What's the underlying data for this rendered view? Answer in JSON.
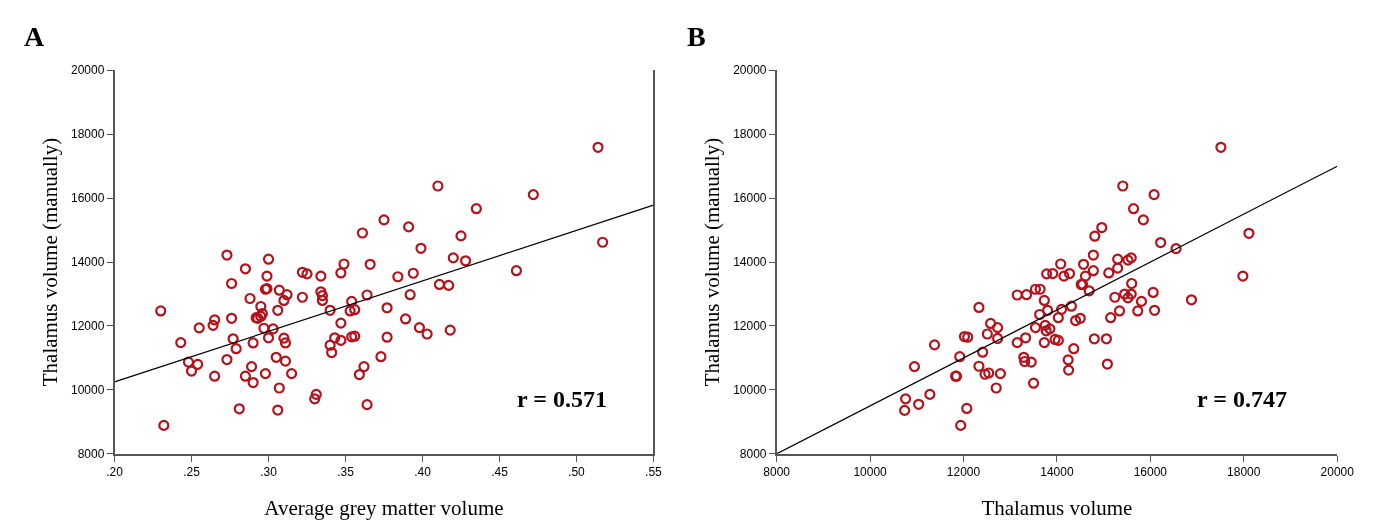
{
  "chart_data": [
    {
      "type": "scatter",
      "title": "A",
      "xlabel": "Average grey matter volume",
      "ylabel": "Thalamus volume (manually)",
      "xlim": [
        0.2,
        0.55
      ],
      "xticks": [
        {
          "value": 0.2,
          "label": ".20"
        },
        {
          "value": 0.25,
          "label": ".25"
        },
        {
          "value": 0.3,
          "label": ".30"
        },
        {
          "value": 0.35,
          "label": ".35"
        },
        {
          "value": 0.4,
          "label": ".40"
        },
        {
          "value": 0.45,
          "label": ".45"
        },
        {
          "value": 0.5,
          "label": ".50"
        },
        {
          "value": 0.55,
          "label": ".55"
        }
      ],
      "ylim": [
        8000,
        20000
      ],
      "yticks": [
        8000,
        10000,
        12000,
        14000,
        16000,
        18000,
        20000
      ],
      "annotations": [
        "r = 0.571"
      ],
      "series": [
        {
          "marker": "circle",
          "color": "#b5121b",
          "x": [
            0.23,
            0.232,
            0.243,
            0.248,
            0.25,
            0.254,
            0.255,
            0.264,
            0.265,
            0.265,
            0.273,
            0.273,
            0.276,
            0.276,
            0.277,
            0.279,
            0.281,
            0.285,
            0.285,
            0.288,
            0.289,
            0.29,
            0.29,
            0.292,
            0.293,
            0.295,
            0.296,
            0.295,
            0.297,
            0.298,
            0.299,
            0.298,
            0.299,
            0.3,
            0.3,
            0.303,
            0.305,
            0.306,
            0.306,
            0.307,
            0.307,
            0.31,
            0.312,
            0.31,
            0.311,
            0.311,
            0.315,
            0.322,
            0.322,
            0.325,
            0.33,
            0.331,
            0.334,
            0.334,
            0.335,
            0.335,
            0.34,
            0.34,
            0.341,
            0.343,
            0.347,
            0.347,
            0.347,
            0.349,
            0.353,
            0.356,
            0.354,
            0.354,
            0.356,
            0.359,
            0.361,
            0.362,
            0.364,
            0.364,
            0.366,
            0.373,
            0.375,
            0.377,
            0.377,
            0.384,
            0.391,
            0.399,
            0.394,
            0.392,
            0.389,
            0.398,
            0.403,
            0.41,
            0.411,
            0.417,
            0.418,
            0.42,
            0.428,
            0.425,
            0.435,
            0.461,
            0.472,
            0.514,
            0.517
          ],
          "values": [
            12470,
            8890,
            11480,
            10870,
            10590,
            10800,
            11940,
            12020,
            12190,
            10430,
            14220,
            10950,
            12240,
            13330,
            11600,
            11290,
            9410,
            10430,
            13790,
            12860,
            10730,
            11470,
            10230,
            12260,
            12240,
            12300,
            12390,
            12610,
            11930,
            13150,
            13170,
            10510,
            13560,
            14090,
            11630,
            11910,
            11020,
            9370,
            12490,
            10060,
            13120,
            12800,
            12980,
            11620,
            11470,
            10900,
            10510,
            12900,
            13680,
            13630,
            9720,
            9860,
            13560,
            13070,
            12950,
            12800,
            12490,
            11400,
            11170,
            11630,
            11550,
            13660,
            12090,
            13940,
            12470,
            12510,
            12770,
            11660,
            11680,
            10480,
            14910,
            10730,
            9540,
            12970,
            13930,
            11040,
            15320,
            12570,
            11650,
            13540,
            15100,
            14430,
            13650,
            12980,
            12220,
            11950,
            11750,
            16380,
            13300,
            13270,
            11870,
            14130,
            14040,
            14820,
            15670,
            13730,
            16110,
            17590,
            14620
          ]
        },
        {
          "type": "line",
          "color": "#000000",
          "x": [
            0.2,
            0.55
          ],
          "values": [
            10250,
            15780
          ]
        }
      ]
    },
    {
      "type": "scatter",
      "title": "B",
      "xlabel": "Thalamus volume",
      "ylabel": "Thalamus volume (manually)",
      "xlim": [
        8000,
        20000
      ],
      "xticks": [
        8000,
        10000,
        12000,
        14000,
        16000,
        18000,
        20000
      ],
      "ylim": [
        8000,
        20000
      ],
      "yticks": [
        8000,
        10000,
        12000,
        14000,
        16000,
        18000,
        20000
      ],
      "annotations": [
        "r = 0.747"
      ],
      "series": [
        {
          "marker": "circle",
          "color": "#b5121b",
          "x": [
            10740,
            10760,
            10950,
            11040,
            11280,
            11380,
            11830,
            11850,
            11920,
            11940,
            12070,
            12020,
            12090,
            12330,
            12330,
            12410,
            12460,
            12540,
            12510,
            12580,
            12700,
            12730,
            12730,
            12790,
            13150,
            13350,
            13150,
            13330,
            13290,
            13310,
            13450,
            13500,
            13540,
            13640,
            13780,
            13730,
            13630,
            13540,
            13730,
            13750,
            13770,
            13800,
            13850,
            13910,
            13960,
            14030,
            14080,
            14030,
            14100,
            14150,
            14270,
            14310,
            14360,
            14240,
            14250,
            14400,
            14500,
            14520,
            14550,
            14570,
            14610,
            14690,
            14780,
            14780,
            14810,
            14960,
            14800,
            15060,
            15080,
            15110,
            15150,
            15240,
            15300,
            15300,
            15340,
            15410,
            15450,
            15520,
            15590,
            15520,
            15590,
            15600,
            15640,
            15730,
            15810,
            15850,
            16080,
            16060,
            16090,
            16220,
            16550,
            16880,
            17510,
            17980,
            18110
          ],
          "values": [
            9360,
            9720,
            10730,
            9550,
            9860,
            11410,
            10430,
            10430,
            11040,
            8890,
            9420,
            11670,
            11650,
            12580,
            10740,
            11180,
            10490,
            10530,
            11750,
            12080,
            10060,
            11950,
            11610,
            10510,
            12970,
            12980,
            11480,
            11630,
            11020,
            10890,
            10870,
            10210,
            13150,
            13150,
            13630,
            12800,
            12360,
            11950,
            11480,
            12020,
            11850,
            12490,
            11910,
            13640,
            11580,
            11550,
            13940,
            12260,
            12520,
            13560,
            13640,
            12620,
            11290,
            10940,
            10620,
            12170,
            12240,
            13300,
            13300,
            13930,
            13560,
            13100,
            14220,
            13730,
            14810,
            15080,
            11600,
            11600,
            10810,
            13660,
            12260,
            12900,
            13810,
            14090,
            12470,
            16380,
            13000,
            12880,
            13000,
            14060,
            14130,
            13330,
            15670,
            12470,
            12770,
            15320,
            16110,
            13050,
            12490,
            14610,
            14420,
            12820,
            17590,
            13560,
            14900
          ]
        },
        {
          "type": "line",
          "color": "#000000",
          "x": [
            8000,
            20000
          ],
          "values": [
            8000,
            17000
          ]
        }
      ]
    }
  ]
}
